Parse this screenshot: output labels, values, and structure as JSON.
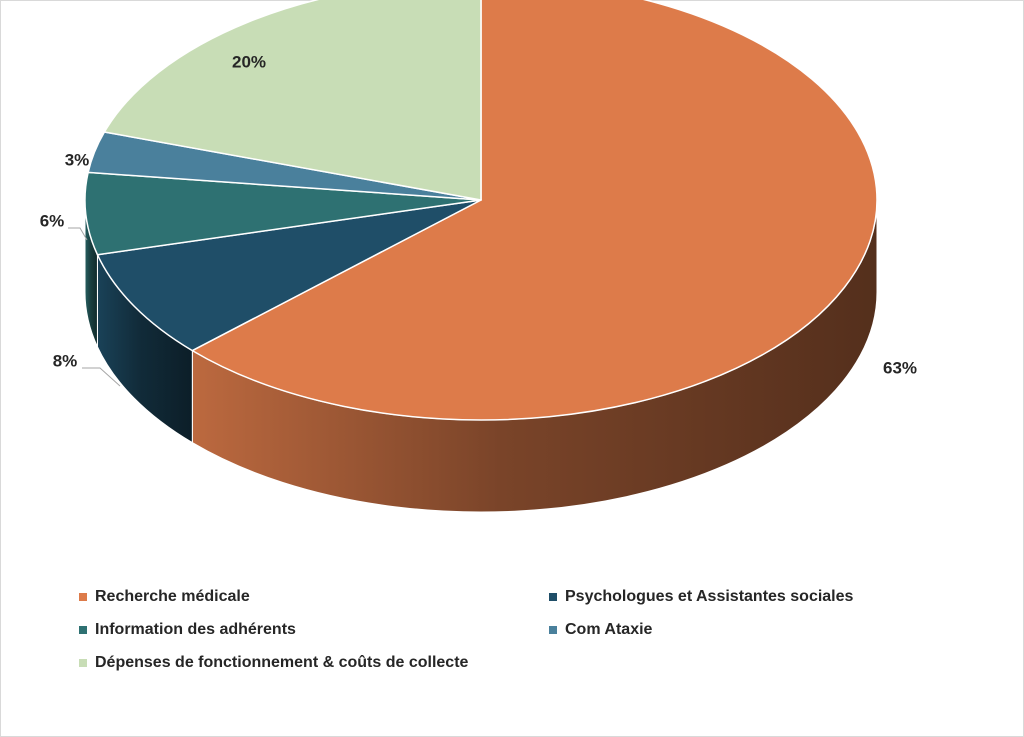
{
  "chart_data": {
    "type": "pie",
    "categories": [
      "Recherche médicale",
      "Psychologues et Assistantes sociales",
      "Information des adhérents",
      "Com Ataxie",
      "Dépenses de fonctionnement & coûts de collecte"
    ],
    "values": [
      63,
      8,
      6,
      3,
      20
    ],
    "labels": [
      "63%",
      "8%",
      "6%",
      "3%",
      "20%"
    ],
    "colors": [
      "#dd7b4a",
      "#1f4e68",
      "#2e7172",
      "#4a809c",
      "#c8ddb6"
    ],
    "legend_position": "bottom",
    "view": "3d"
  }
}
